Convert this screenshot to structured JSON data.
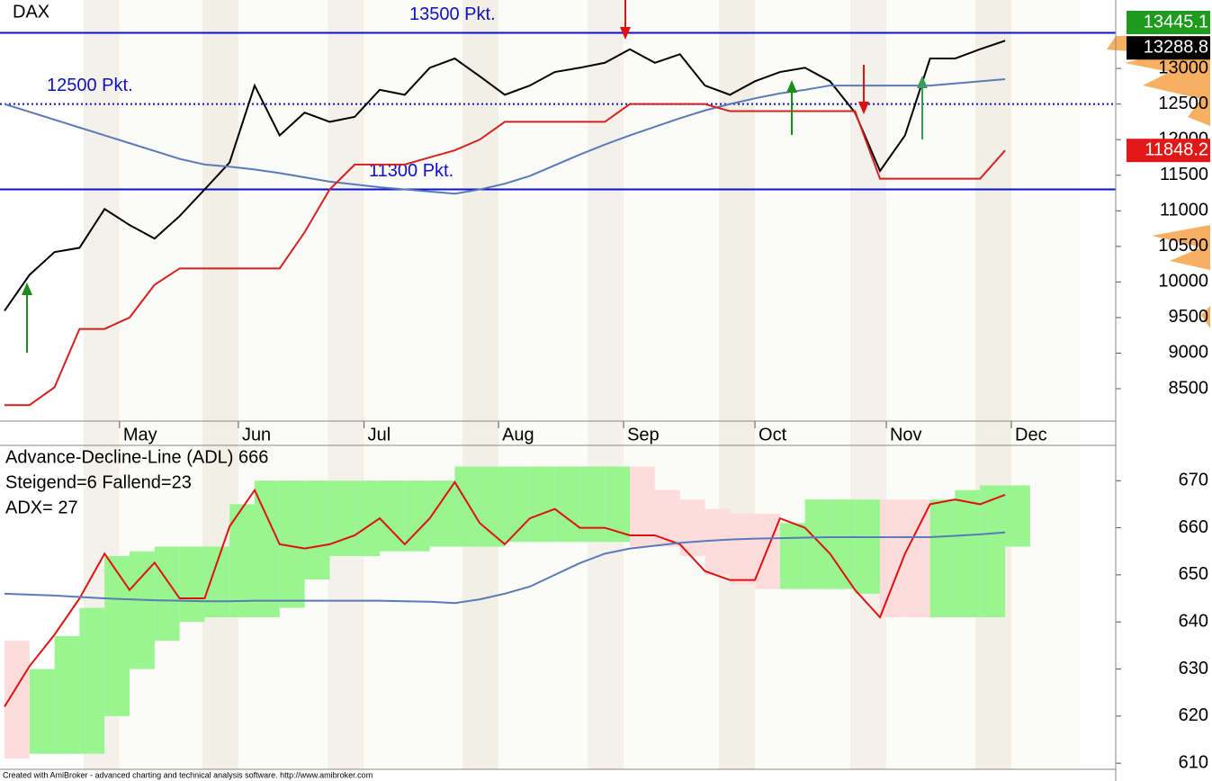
{
  "chart_data": [
    {
      "type": "line",
      "title": "DAX",
      "x": [
        0,
        4,
        8,
        12,
        16,
        20,
        24,
        28,
        32,
        36,
        40,
        44,
        48,
        52,
        56,
        60,
        64,
        68,
        72,
        76,
        80,
        84,
        88,
        92,
        96,
        100,
        104,
        108,
        112,
        116,
        120,
        124,
        128,
        132,
        136,
        140,
        144,
        148,
        152,
        156,
        160
      ],
      "xlim": [
        0,
        161
      ],
      "xticks": [
        {
          "value": 18.4,
          "label": "May"
        },
        {
          "value": 37.4,
          "label": "Jun"
        },
        {
          "value": 57.5,
          "label": "Jul"
        },
        {
          "value": 79,
          "label": "Aug"
        },
        {
          "value": 99,
          "label": "Sep"
        },
        {
          "value": 120,
          "label": "Oct"
        },
        {
          "value": 141,
          "label": "Nov"
        },
        {
          "value": 161,
          "label": "Dec"
        }
      ],
      "ylim": [
        8045,
        13962
      ],
      "yticks": [
        8500,
        9000,
        9500,
        10000,
        10500,
        11000,
        11500,
        12000,
        12500,
        13000
      ],
      "series": [
        {
          "color": "#000000",
          "values": [
            9595,
            10100,
            10420,
            10480,
            11025,
            10800,
            10610,
            10925,
            11300,
            11680,
            12760,
            12060,
            12380,
            12250,
            12320,
            12700,
            12630,
            13010,
            13140,
            12890,
            12630,
            12760,
            12950,
            13010,
            13080,
            13270,
            13080,
            13200,
            12760,
            12630,
            12820,
            12950,
            13010,
            12820,
            12380,
            11560,
            12060,
            13140,
            13140,
            13270,
            13390
          ]
        },
        {
          "color": "#5a7ab8",
          "values": [
            12500,
            12390,
            12280,
            12170,
            12060,
            11950,
            11840,
            11730,
            11650,
            11620,
            11580,
            11530,
            11470,
            11410,
            11370,
            11330,
            11300,
            11270,
            11240,
            11300,
            11380,
            11490,
            11640,
            11790,
            11930,
            12060,
            12180,
            12300,
            12410,
            12500,
            12580,
            12650,
            12700,
            12760,
            12760,
            12760,
            12760,
            12760,
            12790,
            12820,
            12850
          ]
        },
        {
          "color": "#d42020",
          "values": [
            8270,
            8270,
            8520,
            9340,
            9340,
            9500,
            9960,
            10190,
            10190,
            10190,
            10190,
            10190,
            10700,
            11300,
            11650,
            11650,
            11650,
            11750,
            11850,
            12000,
            12250,
            12250,
            12250,
            12250,
            12250,
            12500,
            12500,
            12500,
            12500,
            12400,
            12400,
            12400,
            12400,
            12400,
            12400,
            11450,
            11450,
            11450,
            11450,
            11450,
            11848
          ]
        }
      ],
      "levels": [
        {
          "value": 13500,
          "label": "13500 Pkt.",
          "style": "solid"
        },
        {
          "value": 12500,
          "label": "12500 Pkt.",
          "style": "dotted"
        },
        {
          "value": 11300,
          "label": "11300 Pkt.",
          "style": "solid"
        }
      ],
      "price_labels": [
        {
          "value": 13445.1,
          "color": "#1e9a1e"
        },
        {
          "value": 13288.8,
          "color": "#000000"
        },
        {
          "value": 11848.2,
          "color": "#e01818"
        }
      ]
    },
    {
      "type": "line",
      "title": "Advance-Decline-Line (ADL) 666",
      "annotations": [
        "Steigend=6  Fallend=23",
        "ADX= 27"
      ],
      "x": [
        0,
        4,
        8,
        12,
        16,
        20,
        24,
        28,
        32,
        36,
        40,
        44,
        48,
        52,
        56,
        60,
        64,
        68,
        72,
        76,
        80,
        84,
        88,
        92,
        96,
        100,
        104,
        108,
        112,
        116,
        120,
        124,
        128,
        132,
        136,
        140,
        144,
        148,
        152,
        156,
        160
      ],
      "xlim": [
        0,
        161
      ],
      "ylim": [
        608.7,
        677.5
      ],
      "yticks": [
        610,
        620,
        630,
        640,
        650,
        660,
        670
      ],
      "band_upper": [
        636,
        630,
        637,
        643,
        654,
        655,
        656,
        656,
        656,
        665,
        670,
        670,
        670,
        670,
        670,
        670,
        670,
        670,
        673,
        673,
        673,
        673,
        673,
        673,
        673,
        673,
        668,
        666,
        664,
        663,
        663,
        661,
        666,
        666,
        666,
        666,
        666,
        666,
        668,
        669,
        669
      ],
      "band_lower": [
        611,
        612,
        612,
        612,
        620,
        630,
        636,
        640,
        641,
        641,
        641,
        643,
        649,
        654,
        654,
        655,
        655,
        656,
        656,
        656,
        657,
        657,
        657,
        657,
        657,
        656,
        656,
        654,
        650,
        648,
        647,
        647,
        647,
        647,
        646,
        641,
        641,
        641,
        641,
        641,
        656
      ],
      "band_colors": [
        "#ffdcdc",
        "#99f58f",
        "#99f58f",
        "#99f58f",
        "#99f58f",
        "#99f58f",
        "#99f58f",
        "#99f58f",
        "#99f58f",
        "#99f58f",
        "#99f58f",
        "#99f58f",
        "#99f58f",
        "#99f58f",
        "#99f58f",
        "#99f58f",
        "#99f58f",
        "#99f58f",
        "#99f58f",
        "#99f58f",
        "#99f58f",
        "#99f58f",
        "#99f58f",
        "#99f58f",
        "#99f58f",
        "#ffdcdc",
        "#ffdcdc",
        "#ffdcdc",
        "#ffdcdc",
        "#ffdcdc",
        "#ffdcdc",
        "#99f58f",
        "#99f58f",
        "#99f58f",
        "#99f58f",
        "#ffdcdc",
        "#ffdcdc",
        "#99f58f",
        "#99f58f",
        "#99f58f",
        "#99f58f"
      ],
      "series": [
        {
          "color": "#e01010",
          "values": [
            622,
            630.6,
            637.3,
            645,
            654.5,
            646.8,
            652.6,
            645,
            645,
            660.3,
            668,
            656.5,
            655.6,
            656.5,
            658.4,
            662,
            656.5,
            662,
            669.7,
            661,
            656.5,
            662,
            664,
            660,
            660,
            658.4,
            658.4,
            656.5,
            650.8,
            648.9,
            648.9,
            662,
            660,
            654.5,
            646.8,
            641,
            654.5,
            665,
            666,
            665,
            667
          ]
        },
        {
          "color": "#5a7ab8",
          "values": [
            646,
            645.8,
            645.6,
            645.3,
            645,
            644.8,
            644.6,
            644.5,
            644.4,
            644.4,
            644.5,
            644.5,
            644.5,
            644.5,
            644.5,
            644.5,
            644.4,
            644.3,
            644,
            644.8,
            646,
            647.5,
            650,
            652.5,
            654.5,
            655.6,
            656.2,
            656.8,
            657.2,
            657.5,
            657.7,
            657.8,
            657.9,
            658,
            658,
            658,
            658,
            658,
            658.3,
            658.6,
            659
          ]
        }
      ]
    }
  ],
  "footer": "Created with AmiBroker - advanced charting and technical analysis software. http://www.amibroker.com"
}
